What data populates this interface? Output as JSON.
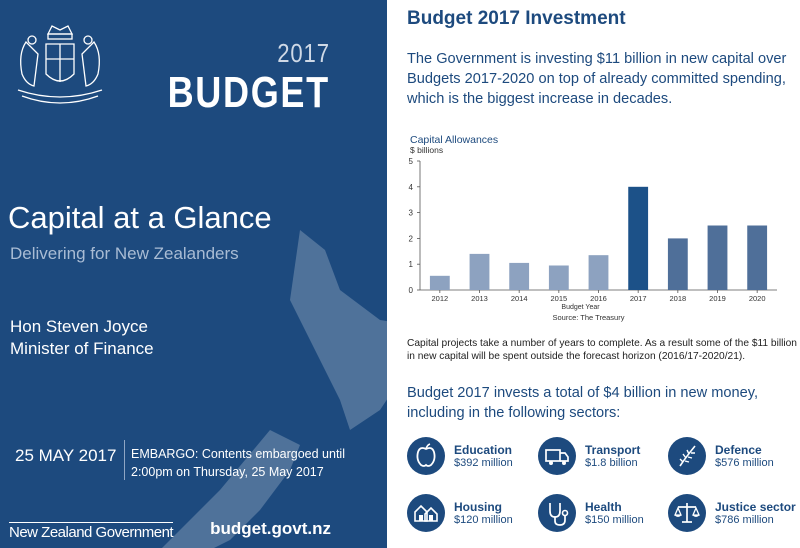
{
  "left_panel": {
    "year": "2017",
    "budget_word": "BUDGET",
    "title": "Capital at a Glance",
    "subtitle": "Delivering for New Zealanders",
    "minister_name": "Hon Steven Joyce",
    "minister_role": "Minister of Finance",
    "date": "25 MAY 2017",
    "embargo_line1": "EMBARGO: Contents embargoed until",
    "embargo_line2": "2:00pm on Thursday, 25 May 2017",
    "gov_logo_text": "New Zealand Government",
    "website": "budget.govt.nz"
  },
  "right_panel": {
    "title": "Budget 2017 Investment",
    "intro": "The Government is investing $11 billion in new capital over Budgets 2017-2020 on top of already committed spending, which is the biggest increase in decades.",
    "paragraph": "Capital projects take a number of years to complete. As a result some of the $11 billion in new capital will be spent outside the forecast horizon (2016/17-2020/21).",
    "sectors_heading": "Budget 2017 invests a total of $4 billion in new money, including in the following sectors:",
    "sectors": [
      {
        "name": "Education",
        "amount": "$392 million",
        "icon": "apple-icon"
      },
      {
        "name": "Transport",
        "amount": "$1.8 billion",
        "icon": "truck-icon"
      },
      {
        "name": "Defence",
        "amount": "$576 million",
        "icon": "fern-icon"
      },
      {
        "name": "Housing",
        "amount": "$120 million",
        "icon": "houses-icon"
      },
      {
        "name": "Health",
        "amount": "$150 million",
        "icon": "stethoscope-icon"
      },
      {
        "name": "Justice sector",
        "amount": "$786 million",
        "icon": "scales-icon"
      }
    ]
  },
  "chart_data": {
    "type": "bar",
    "title": "Capital Allowances",
    "ylabel": "$ billions",
    "xlabel": "Budget Year",
    "source": "Source: The Treasury",
    "categories": [
      "2012",
      "2013",
      "2014",
      "2015",
      "2016",
      "2017",
      "2018",
      "2019",
      "2020"
    ],
    "values": [
      0.55,
      1.4,
      1.05,
      0.95,
      1.35,
      4.0,
      2.0,
      2.5,
      2.5
    ],
    "yticks": [
      0,
      1,
      2,
      3,
      4,
      5
    ],
    "ylim": [
      0,
      5
    ],
    "grid": false,
    "colors": {
      "bars": [
        "#8da2c0",
        "#8da2c0",
        "#8da2c0",
        "#8da2c0",
        "#8da2c0",
        "#1c5188",
        "#4f6f99",
        "#4f6f99",
        "#4f6f99"
      ],
      "text": "#1d4a7e"
    }
  }
}
